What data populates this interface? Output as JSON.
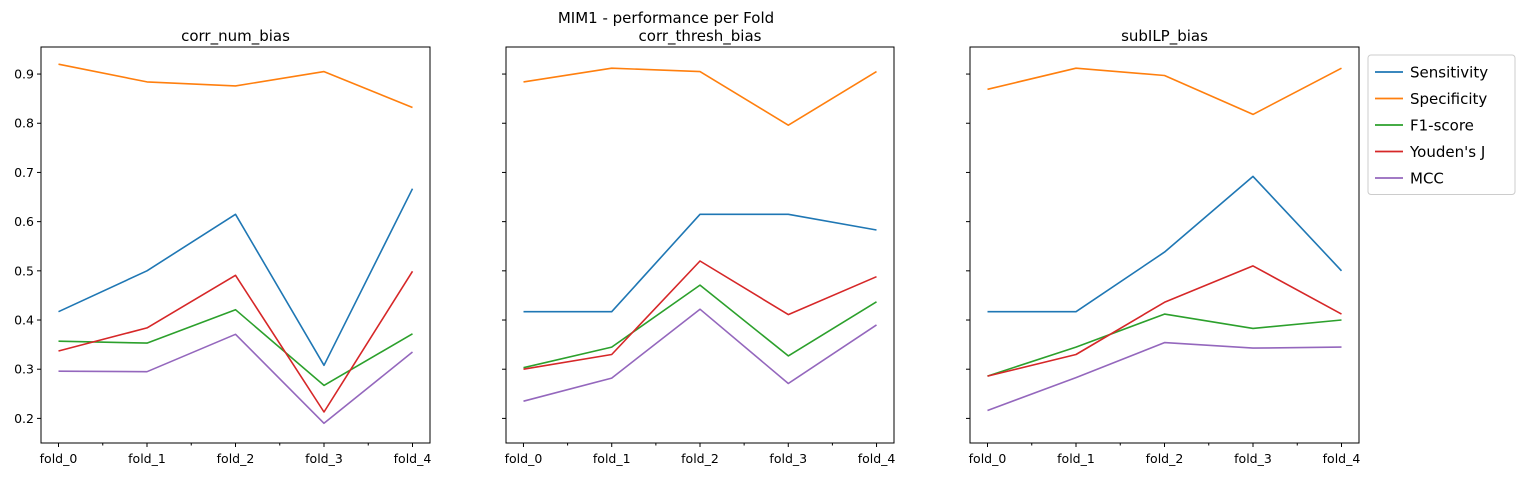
{
  "chart_data": {
    "type": "line",
    "suptitle": "MIM1 - performance per Fold",
    "shared_y": true,
    "ylim": [
      0.15,
      0.955
    ],
    "yticks": [
      0.2,
      0.3,
      0.4,
      0.5,
      0.6,
      0.7,
      0.8,
      0.9
    ],
    "ytick_labels": [
      "0.2",
      "0.3",
      "0.4",
      "0.5",
      "0.6",
      "0.7",
      "0.8",
      "0.9"
    ],
    "categories": [
      "fold_0",
      "fold_1",
      "fold_2",
      "fold_3",
      "fold_4"
    ],
    "legend": {
      "placement": "outside-right-top",
      "entries": [
        "Sensitivity",
        "Specificity",
        "F1-score",
        "Youden's J",
        "MCC"
      ]
    },
    "colors": {
      "Sensitivity": "#1f77b4",
      "Specificity": "#ff7f0e",
      "F1-score": "#2ca02c",
      "Youden's J": "#d62728",
      "MCC": "#9467bd"
    },
    "panels": [
      {
        "title": "corr_num_bias",
        "series": [
          {
            "name": "Sensitivity",
            "values": [
              0.417,
              0.5,
              0.615,
              0.308,
              0.667
            ]
          },
          {
            "name": "Specificity",
            "values": [
              0.92,
              0.884,
              0.876,
              0.905,
              0.832
            ]
          },
          {
            "name": "F1-score",
            "values": [
              0.357,
              0.353,
              0.421,
              0.267,
              0.372
            ]
          },
          {
            "name": "Youden's J",
            "values": [
              0.337,
              0.384,
              0.491,
              0.213,
              0.499
            ]
          },
          {
            "name": "MCC",
            "values": [
              0.296,
              0.295,
              0.371,
              0.19,
              0.335
            ]
          }
        ]
      },
      {
        "title": "corr_thresh_bias",
        "series": [
          {
            "name": "Sensitivity",
            "values": [
              0.417,
              0.417,
              0.615,
              0.615,
              0.583
            ]
          },
          {
            "name": "Specificity",
            "values": [
              0.884,
              0.912,
              0.905,
              0.796,
              0.905
            ]
          },
          {
            "name": "F1-score",
            "values": [
              0.303,
              0.345,
              0.471,
              0.327,
              0.437
            ]
          },
          {
            "name": "Youden's J",
            "values": [
              0.3,
              0.33,
              0.52,
              0.411,
              0.488
            ]
          },
          {
            "name": "MCC",
            "values": [
              0.235,
              0.282,
              0.422,
              0.271,
              0.39
            ]
          }
        ]
      },
      {
        "title": "subILP_bias",
        "series": [
          {
            "name": "Sensitivity",
            "values": [
              0.417,
              0.417,
              0.538,
              0.692,
              0.5
            ]
          },
          {
            "name": "Specificity",
            "values": [
              0.869,
              0.912,
              0.897,
              0.818,
              0.912
            ]
          },
          {
            "name": "F1-score",
            "values": [
              0.286,
              0.345,
              0.412,
              0.383,
              0.4
            ]
          },
          {
            "name": "Youden's J",
            "values": [
              0.286,
              0.33,
              0.436,
              0.51,
              0.412
            ]
          },
          {
            "name": "MCC",
            "values": [
              0.216,
              0.283,
              0.354,
              0.343,
              0.345
            ]
          }
        ]
      }
    ]
  }
}
